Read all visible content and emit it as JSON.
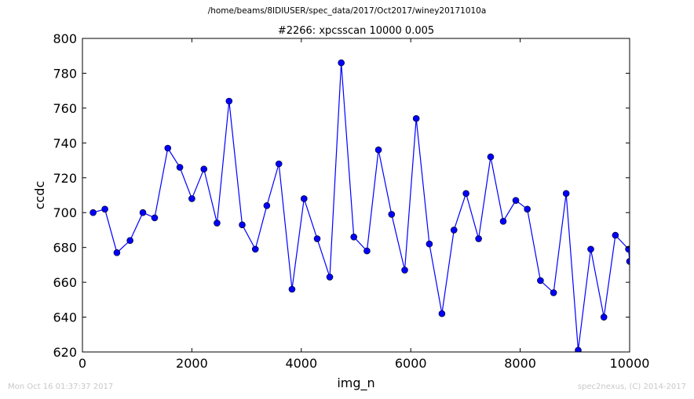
{
  "header": {
    "file_path": "/home/beams/8IDIUSER/spec_data/2017/Oct2017/winey20171010a"
  },
  "footer": {
    "timestamp": "Mon Oct 16 01:37:37 2017",
    "credit": "spec2nexus, (C) 2014-2017"
  },
  "chart_data": {
    "type": "line",
    "title": "#2266: xpcsscan 10000 0.005",
    "xlabel": "img_n",
    "ylabel": "ccdc",
    "xlim": [
      0,
      10000
    ],
    "ylim": [
      620,
      800
    ],
    "xticks": [
      0,
      2000,
      4000,
      6000,
      8000,
      10000
    ],
    "yticks": [
      620,
      640,
      660,
      680,
      700,
      720,
      740,
      760,
      780,
      800
    ],
    "grid": false,
    "marker": "circle",
    "line_color": "#0000ff",
    "marker_color": "#0000ff",
    "series": [
      {
        "x": [
          195,
          410,
          630,
          870,
          1105,
          1320,
          1560,
          1780,
          2000,
          2220,
          2460,
          2680,
          2920,
          3160,
          3370,
          3590,
          3830,
          4050,
          4290,
          4520,
          4730,
          4960,
          5200,
          5410,
          5650,
          5890,
          6100,
          6340,
          6570,
          6790,
          7010,
          7240,
          7460,
          7690,
          7920,
          8130,
          8370,
          8610,
          8840,
          9060,
          9290,
          9530,
          9740,
          9980,
          10000
        ],
        "y": [
          700,
          702,
          677,
          684,
          700,
          697,
          737,
          726,
          708,
          725,
          694,
          764,
          693,
          679,
          704,
          728,
          656,
          708,
          685,
          663,
          786,
          686,
          678,
          736,
          699,
          667,
          754,
          682,
          642,
          690,
          711,
          685,
          732,
          695,
          707,
          702,
          661,
          654,
          711,
          621,
          679,
          640,
          687,
          679,
          672
        ]
      }
    ]
  }
}
